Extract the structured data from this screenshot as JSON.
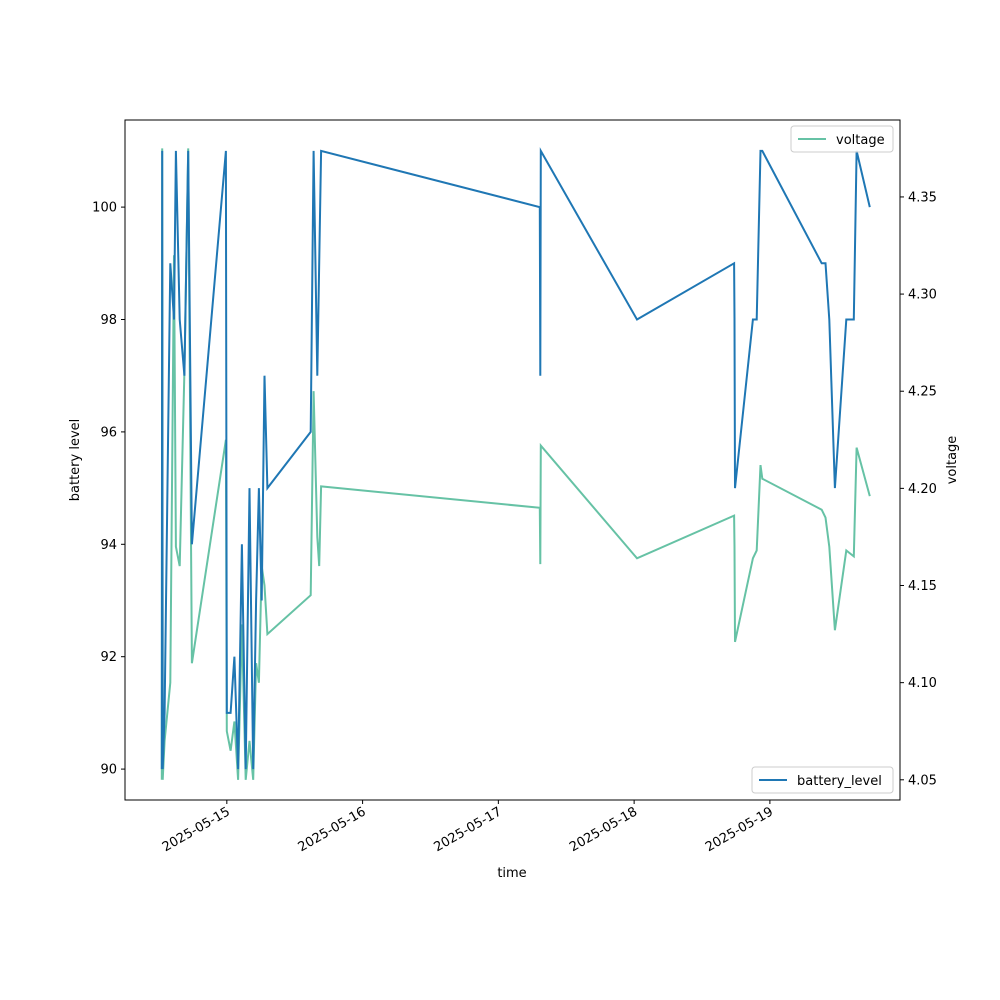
{
  "chart_data": {
    "type": "line",
    "xlabel": "time",
    "ylabel_left": "battery level",
    "ylabel_right": "voltage",
    "x_range": [
      "2025-05-14 06:00",
      "2025-05-19 23:00"
    ],
    "x_ticks": [
      "2025-05-15",
      "2025-05-16",
      "2025-05-17",
      "2025-05-18",
      "2025-05-19"
    ],
    "y_left_range": [
      89.45,
      101.55
    ],
    "y_left_ticks": [
      "90",
      "92",
      "94",
      "96",
      "98",
      "100"
    ],
    "y_right_range": [
      4.0396,
      4.3896
    ],
    "y_right_ticks": [
      "4.05",
      "4.10",
      "4.15",
      "4.20",
      "4.25",
      "4.30",
      "4.35"
    ],
    "grid": false,
    "series": [
      {
        "name": "battery_level",
        "axis": "left",
        "color": "#1f77b4",
        "legend_position": "lower right",
        "points": [
          [
            "2025-05-14 12:30",
            90
          ],
          [
            "2025-05-14 12:35",
            101
          ],
          [
            "2025-05-14 12:40",
            90
          ],
          [
            "2025-05-14 13:00",
            91
          ],
          [
            "2025-05-14 14:00",
            99
          ],
          [
            "2025-05-14 14:40",
            98
          ],
          [
            "2025-05-14 15:00",
            101
          ],
          [
            "2025-05-14 15:40",
            98
          ],
          [
            "2025-05-14 16:30",
            97
          ],
          [
            "2025-05-14 17:10",
            101
          ],
          [
            "2025-05-14 17:50",
            94
          ],
          [
            "2025-05-14 23:50",
            101
          ],
          [
            "2025-05-15 00:00",
            91
          ],
          [
            "2025-05-15 00:40",
            91
          ],
          [
            "2025-05-15 01:20",
            92
          ],
          [
            "2025-05-15 02:00",
            90
          ],
          [
            "2025-05-15 02:40",
            94
          ],
          [
            "2025-05-15 03:20",
            90
          ],
          [
            "2025-05-15 04:00",
            95
          ],
          [
            "2025-05-15 04:40",
            90
          ],
          [
            "2025-05-15 05:10",
            93
          ],
          [
            "2025-05-15 05:40",
            95
          ],
          [
            "2025-05-15 06:10",
            93
          ],
          [
            "2025-05-15 06:40",
            97
          ],
          [
            "2025-05-15 07:10",
            95
          ],
          [
            "2025-05-15 14:50",
            96
          ],
          [
            "2025-05-15 15:20",
            101
          ],
          [
            "2025-05-15 16:00",
            97
          ],
          [
            "2025-05-15 16:40",
            101
          ],
          [
            "2025-05-17 07:20",
            100
          ],
          [
            "2025-05-17 07:25",
            97
          ],
          [
            "2025-05-17 07:30",
            101
          ],
          [
            "2025-05-18 00:30",
            98
          ],
          [
            "2025-05-18 17:40",
            99
          ],
          [
            "2025-05-18 17:45",
            98
          ],
          [
            "2025-05-18 17:50",
            95
          ],
          [
            "2025-05-18 21:00",
            98
          ],
          [
            "2025-05-18 21:40",
            98
          ],
          [
            "2025-05-18 22:20",
            101
          ],
          [
            "2025-05-18 22:40",
            101
          ],
          [
            "2025-05-19 09:10",
            99
          ],
          [
            "2025-05-19 09:50",
            99
          ],
          [
            "2025-05-19 10:30",
            98
          ],
          [
            "2025-05-19 11:30",
            95
          ],
          [
            "2025-05-19 13:30",
            98
          ],
          [
            "2025-05-19 14:50",
            98
          ],
          [
            "2025-05-19 15:20",
            101
          ],
          [
            "2025-05-19 17:40",
            100
          ]
        ]
      },
      {
        "name": "voltage",
        "axis": "right",
        "color": "#66c2a5",
        "legend_position": "upper right",
        "points": [
          [
            "2025-05-14 12:30",
            4.05
          ],
          [
            "2025-05-14 12:35",
            4.375
          ],
          [
            "2025-05-14 12:40",
            4.05
          ],
          [
            "2025-05-14 13:00",
            4.07
          ],
          [
            "2025-05-14 14:00",
            4.1
          ],
          [
            "2025-05-14 14:40",
            4.32
          ],
          [
            "2025-05-14 15:00",
            4.17
          ],
          [
            "2025-05-14 15:40",
            4.16
          ],
          [
            "2025-05-14 16:30",
            4.26
          ],
          [
            "2025-05-14 17:10",
            4.375
          ],
          [
            "2025-05-14 17:50",
            4.11
          ],
          [
            "2025-05-14 23:50",
            4.225
          ],
          [
            "2025-05-15 00:00",
            4.075
          ],
          [
            "2025-05-15 00:40",
            4.065
          ],
          [
            "2025-05-15 01:20",
            4.08
          ],
          [
            "2025-05-15 02:00",
            4.05
          ],
          [
            "2025-05-15 02:40",
            4.13
          ],
          [
            "2025-05-15 03:20",
            4.05
          ],
          [
            "2025-05-15 04:00",
            4.07
          ],
          [
            "2025-05-15 04:40",
            4.05
          ],
          [
            "2025-05-15 05:10",
            4.11
          ],
          [
            "2025-05-15 05:40",
            4.1
          ],
          [
            "2025-05-15 06:10",
            4.16
          ],
          [
            "2025-05-15 06:40",
            4.15
          ],
          [
            "2025-05-15 07:10",
            4.125
          ],
          [
            "2025-05-15 14:50",
            4.145
          ],
          [
            "2025-05-15 15:20",
            4.25
          ],
          [
            "2025-05-15 16:00",
            4.175
          ],
          [
            "2025-05-15 16:20",
            4.16
          ],
          [
            "2025-05-15 16:40",
            4.201
          ],
          [
            "2025-05-17 07:20",
            4.19
          ],
          [
            "2025-05-17 07:25",
            4.161
          ],
          [
            "2025-05-17 07:30",
            4.222
          ],
          [
            "2025-05-18 00:30",
            4.164
          ],
          [
            "2025-05-18 17:40",
            4.186
          ],
          [
            "2025-05-18 17:45",
            4.17
          ],
          [
            "2025-05-18 17:50",
            4.121
          ],
          [
            "2025-05-18 21:00",
            4.164
          ],
          [
            "2025-05-18 21:40",
            4.168
          ],
          [
            "2025-05-18 22:20",
            4.212
          ],
          [
            "2025-05-18 22:40",
            4.205
          ],
          [
            "2025-05-19 09:10",
            4.189
          ],
          [
            "2025-05-19 09:50",
            4.185
          ],
          [
            "2025-05-19 10:30",
            4.17
          ],
          [
            "2025-05-19 11:30",
            4.127
          ],
          [
            "2025-05-19 13:30",
            4.168
          ],
          [
            "2025-05-19 14:50",
            4.165
          ],
          [
            "2025-05-19 15:20",
            4.221
          ],
          [
            "2025-05-19 17:40",
            4.196
          ]
        ]
      }
    ]
  }
}
